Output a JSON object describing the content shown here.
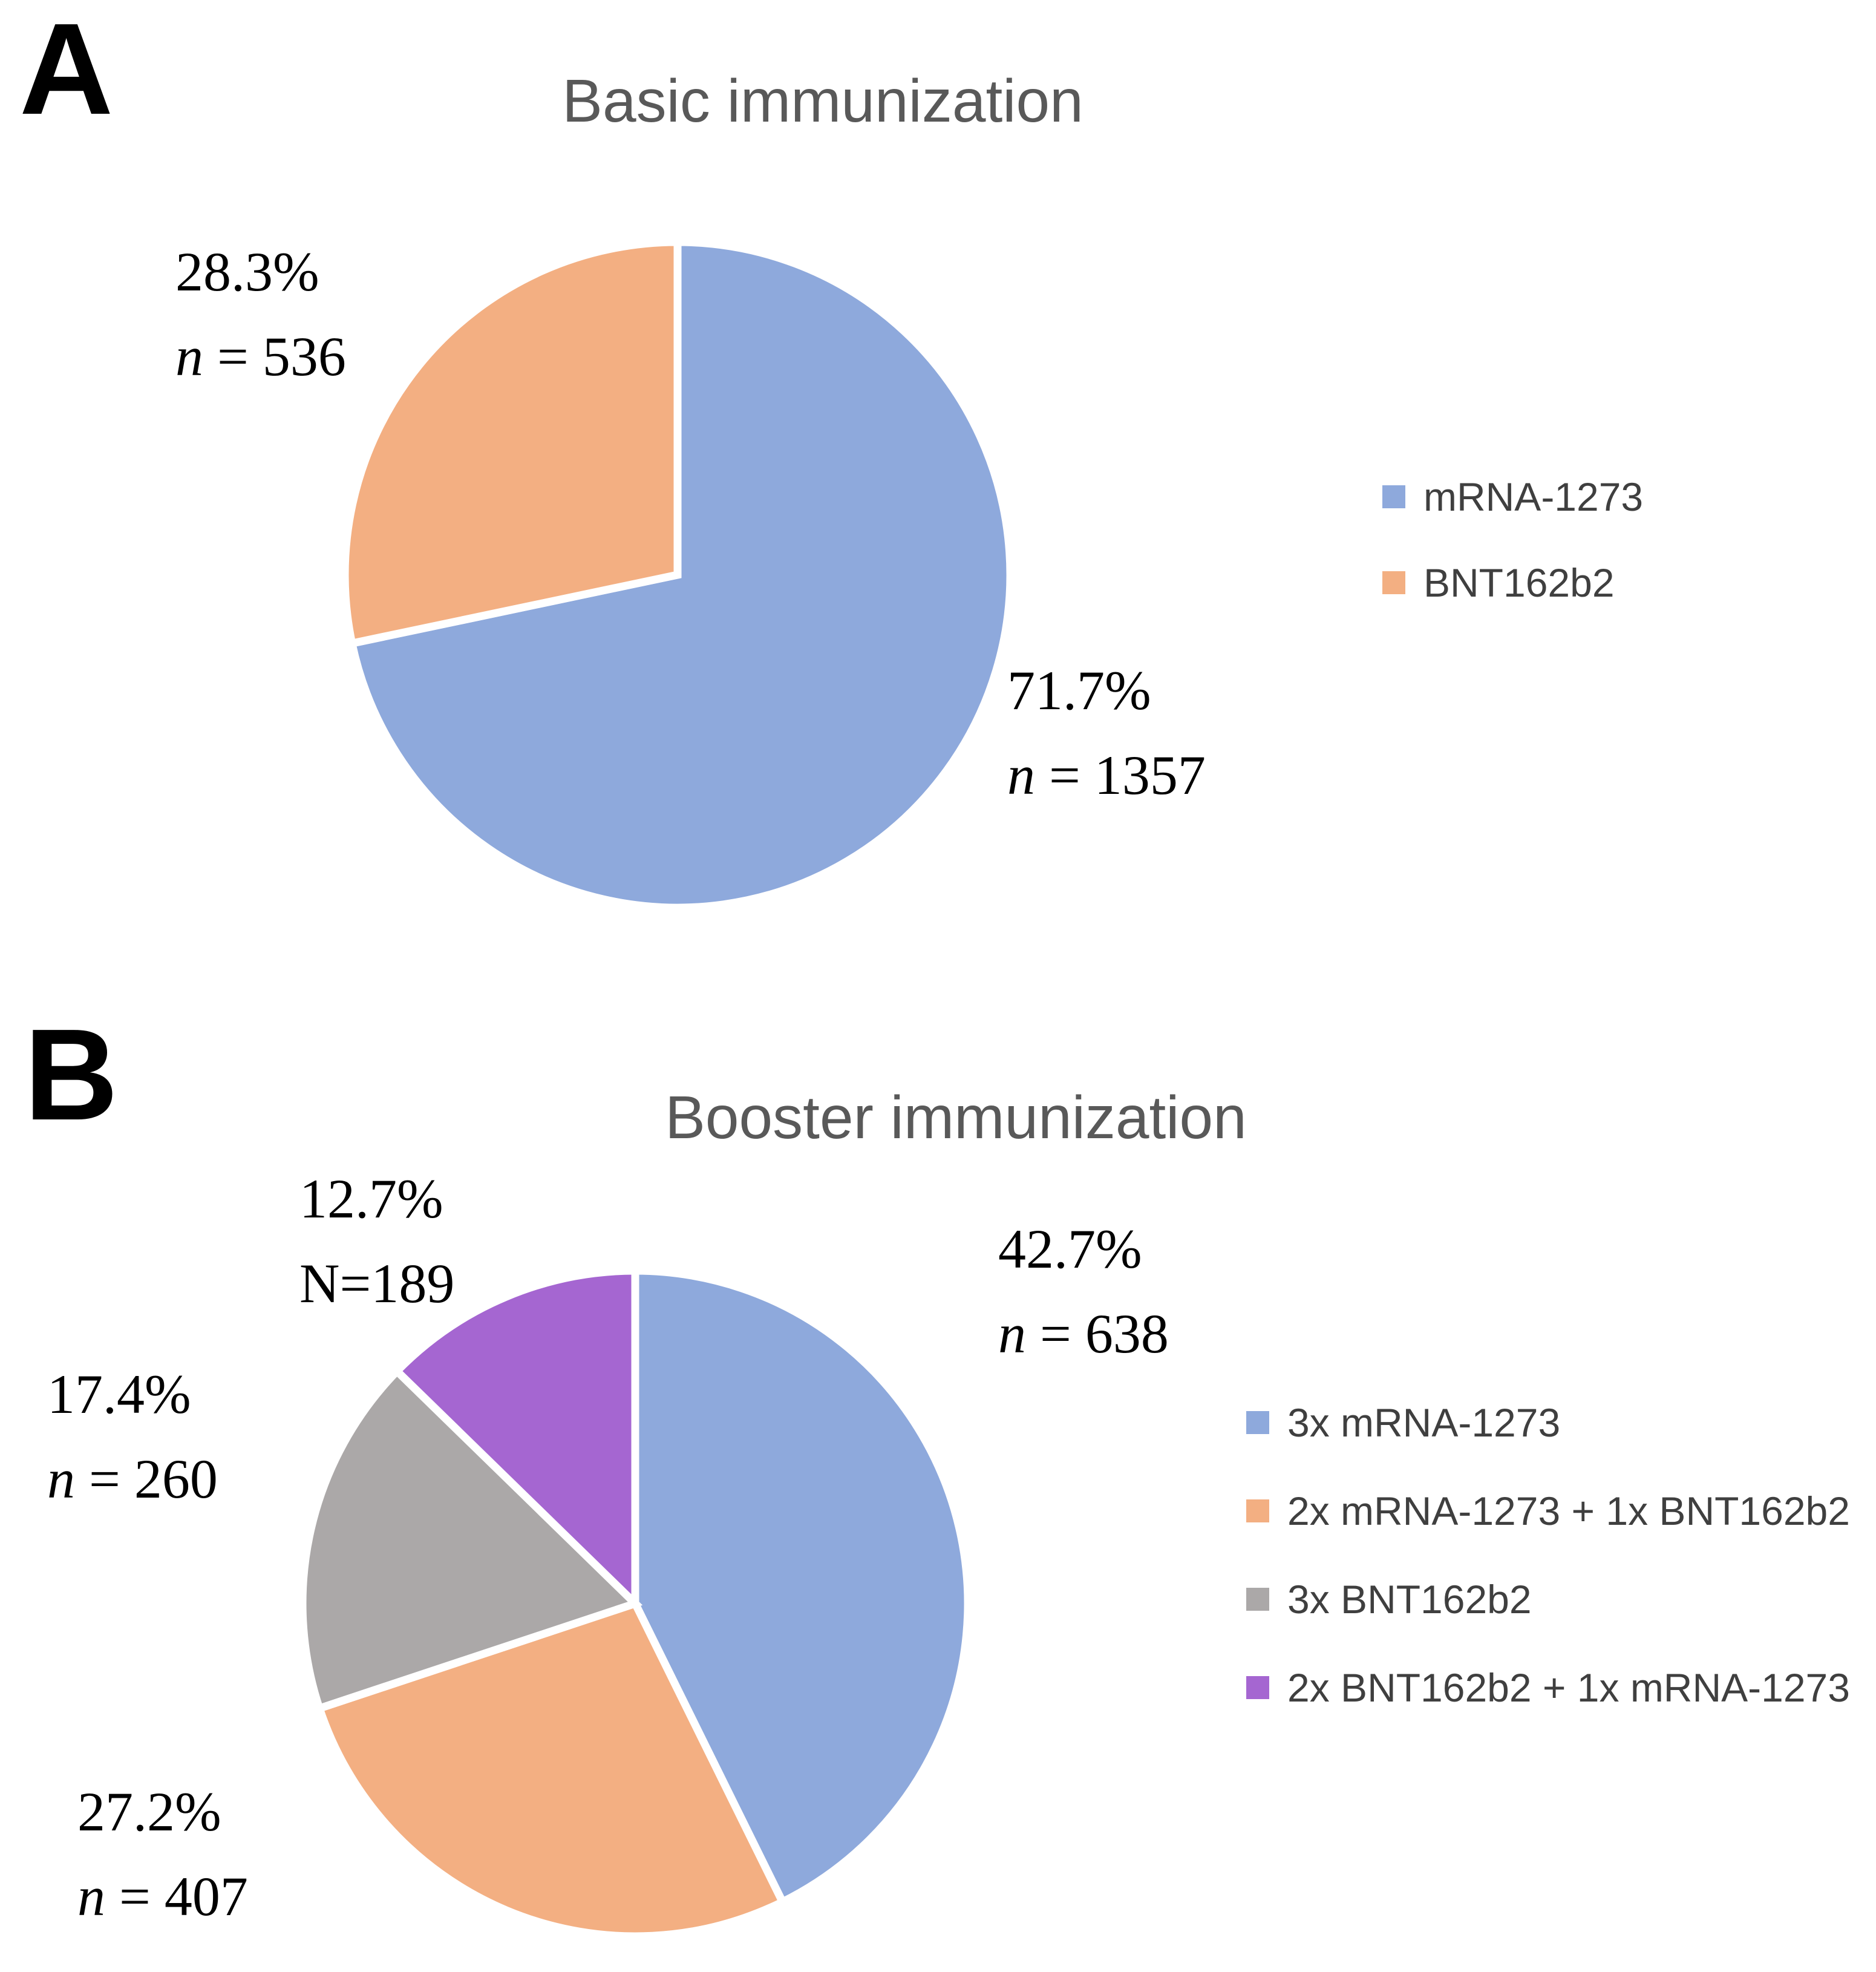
{
  "figure_background": "#ffffff",
  "panels": [
    {
      "panel_label": "A",
      "title": "Basic immunization",
      "callouts": [
        {
          "line1": "28.3%",
          "var": "n",
          "rest": " = 536",
          "var_italic": true
        },
        {
          "line1": "71.7%",
          "var": "n",
          "rest": " = 1357",
          "var_italic": true
        }
      ]
    },
    {
      "panel_label": "B",
      "title": "Booster immunization",
      "callouts": [
        {
          "line1": "12.7%",
          "var": "N",
          "rest": "=189",
          "var_italic": false
        },
        {
          "line1": "42.7%",
          "var": "n",
          "rest": " = 638",
          "var_italic": true
        },
        {
          "line1": "17.4%",
          "var": "n",
          "rest": " = 260",
          "var_italic": true
        },
        {
          "line1": "27.2%",
          "var": "n",
          "rest": " = 407",
          "var_italic": true
        }
      ]
    }
  ],
  "chart_data": [
    {
      "type": "pie",
      "title": "Basic immunization",
      "start_angle_deg": 0,
      "direction": "clockwise",
      "legend_position": "right",
      "slice_border_color": "#ffffff",
      "slices": [
        {
          "label": "mRNA-1273",
          "value_pct": 71.7,
          "n": 1357,
          "color": "#8EA9DC"
        },
        {
          "label": "BNT162b2",
          "value_pct": 28.3,
          "n": 536,
          "color": "#F3AF82"
        }
      ]
    },
    {
      "type": "pie",
      "title": "Booster immunization",
      "start_angle_deg": 0,
      "direction": "clockwise",
      "legend_position": "right",
      "slice_border_color": "#ffffff",
      "slices": [
        {
          "label": "3x mRNA-1273",
          "value_pct": 42.7,
          "n": 638,
          "color": "#8EA9DC"
        },
        {
          "label": "2x mRNA-1273 + 1x BNT162b2",
          "value_pct": 27.2,
          "n": 407,
          "color": "#F3AF82"
        },
        {
          "label": "3x BNT162b2",
          "value_pct": 17.4,
          "n": 260,
          "color": "#ABA8A8"
        },
        {
          "label": "2x BNT162b2 + 1x mRNA-1273",
          "value_pct": 12.7,
          "n": 189,
          "color": "#A566D1"
        }
      ]
    }
  ],
  "colors": {
    "title_gray": "#595959",
    "legend_text": "#3f3f3f",
    "blue": "#8EA9DC",
    "orange": "#F3AF82",
    "gray": "#ABA8A8",
    "purple": "#A566D1"
  }
}
